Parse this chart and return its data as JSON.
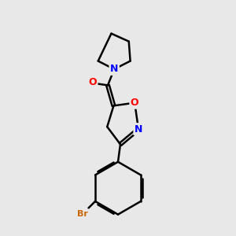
{
  "background_color": "#e8e8e8",
  "bond_color": "#000000",
  "bond_width": 1.8,
  "atom_colors": {
    "N": "#0000ff",
    "O": "#ff0000",
    "Br": "#cc6600",
    "C": "#000000"
  },
  "font_size_atom": 9,
  "fig_size": [
    3.0,
    3.0
  ],
  "dpi": 100
}
